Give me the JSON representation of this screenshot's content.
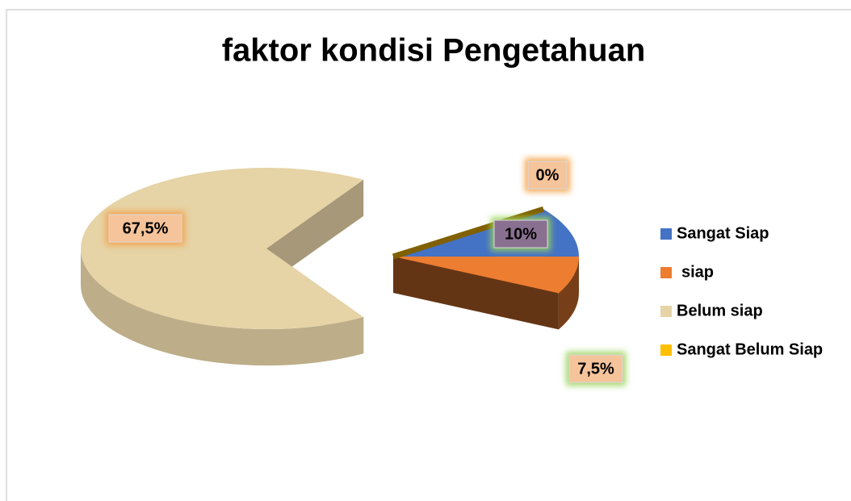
{
  "chart_data": {
    "type": "pie",
    "title": "faktor kondisi Pengetahuan",
    "categories": [
      "Sangat Siap",
      "siap",
      "Belum siap",
      "Sangat Belum Siap"
    ],
    "values": [
      10,
      7.5,
      67.5,
      0
    ],
    "value_labels": [
      "10%",
      "7,5%",
      "67,5%",
      "0%"
    ],
    "colors": [
      "#4472c4",
      "#ed7d31",
      "#e6d3a6",
      "#ffc000"
    ],
    "legend": "right"
  }
}
